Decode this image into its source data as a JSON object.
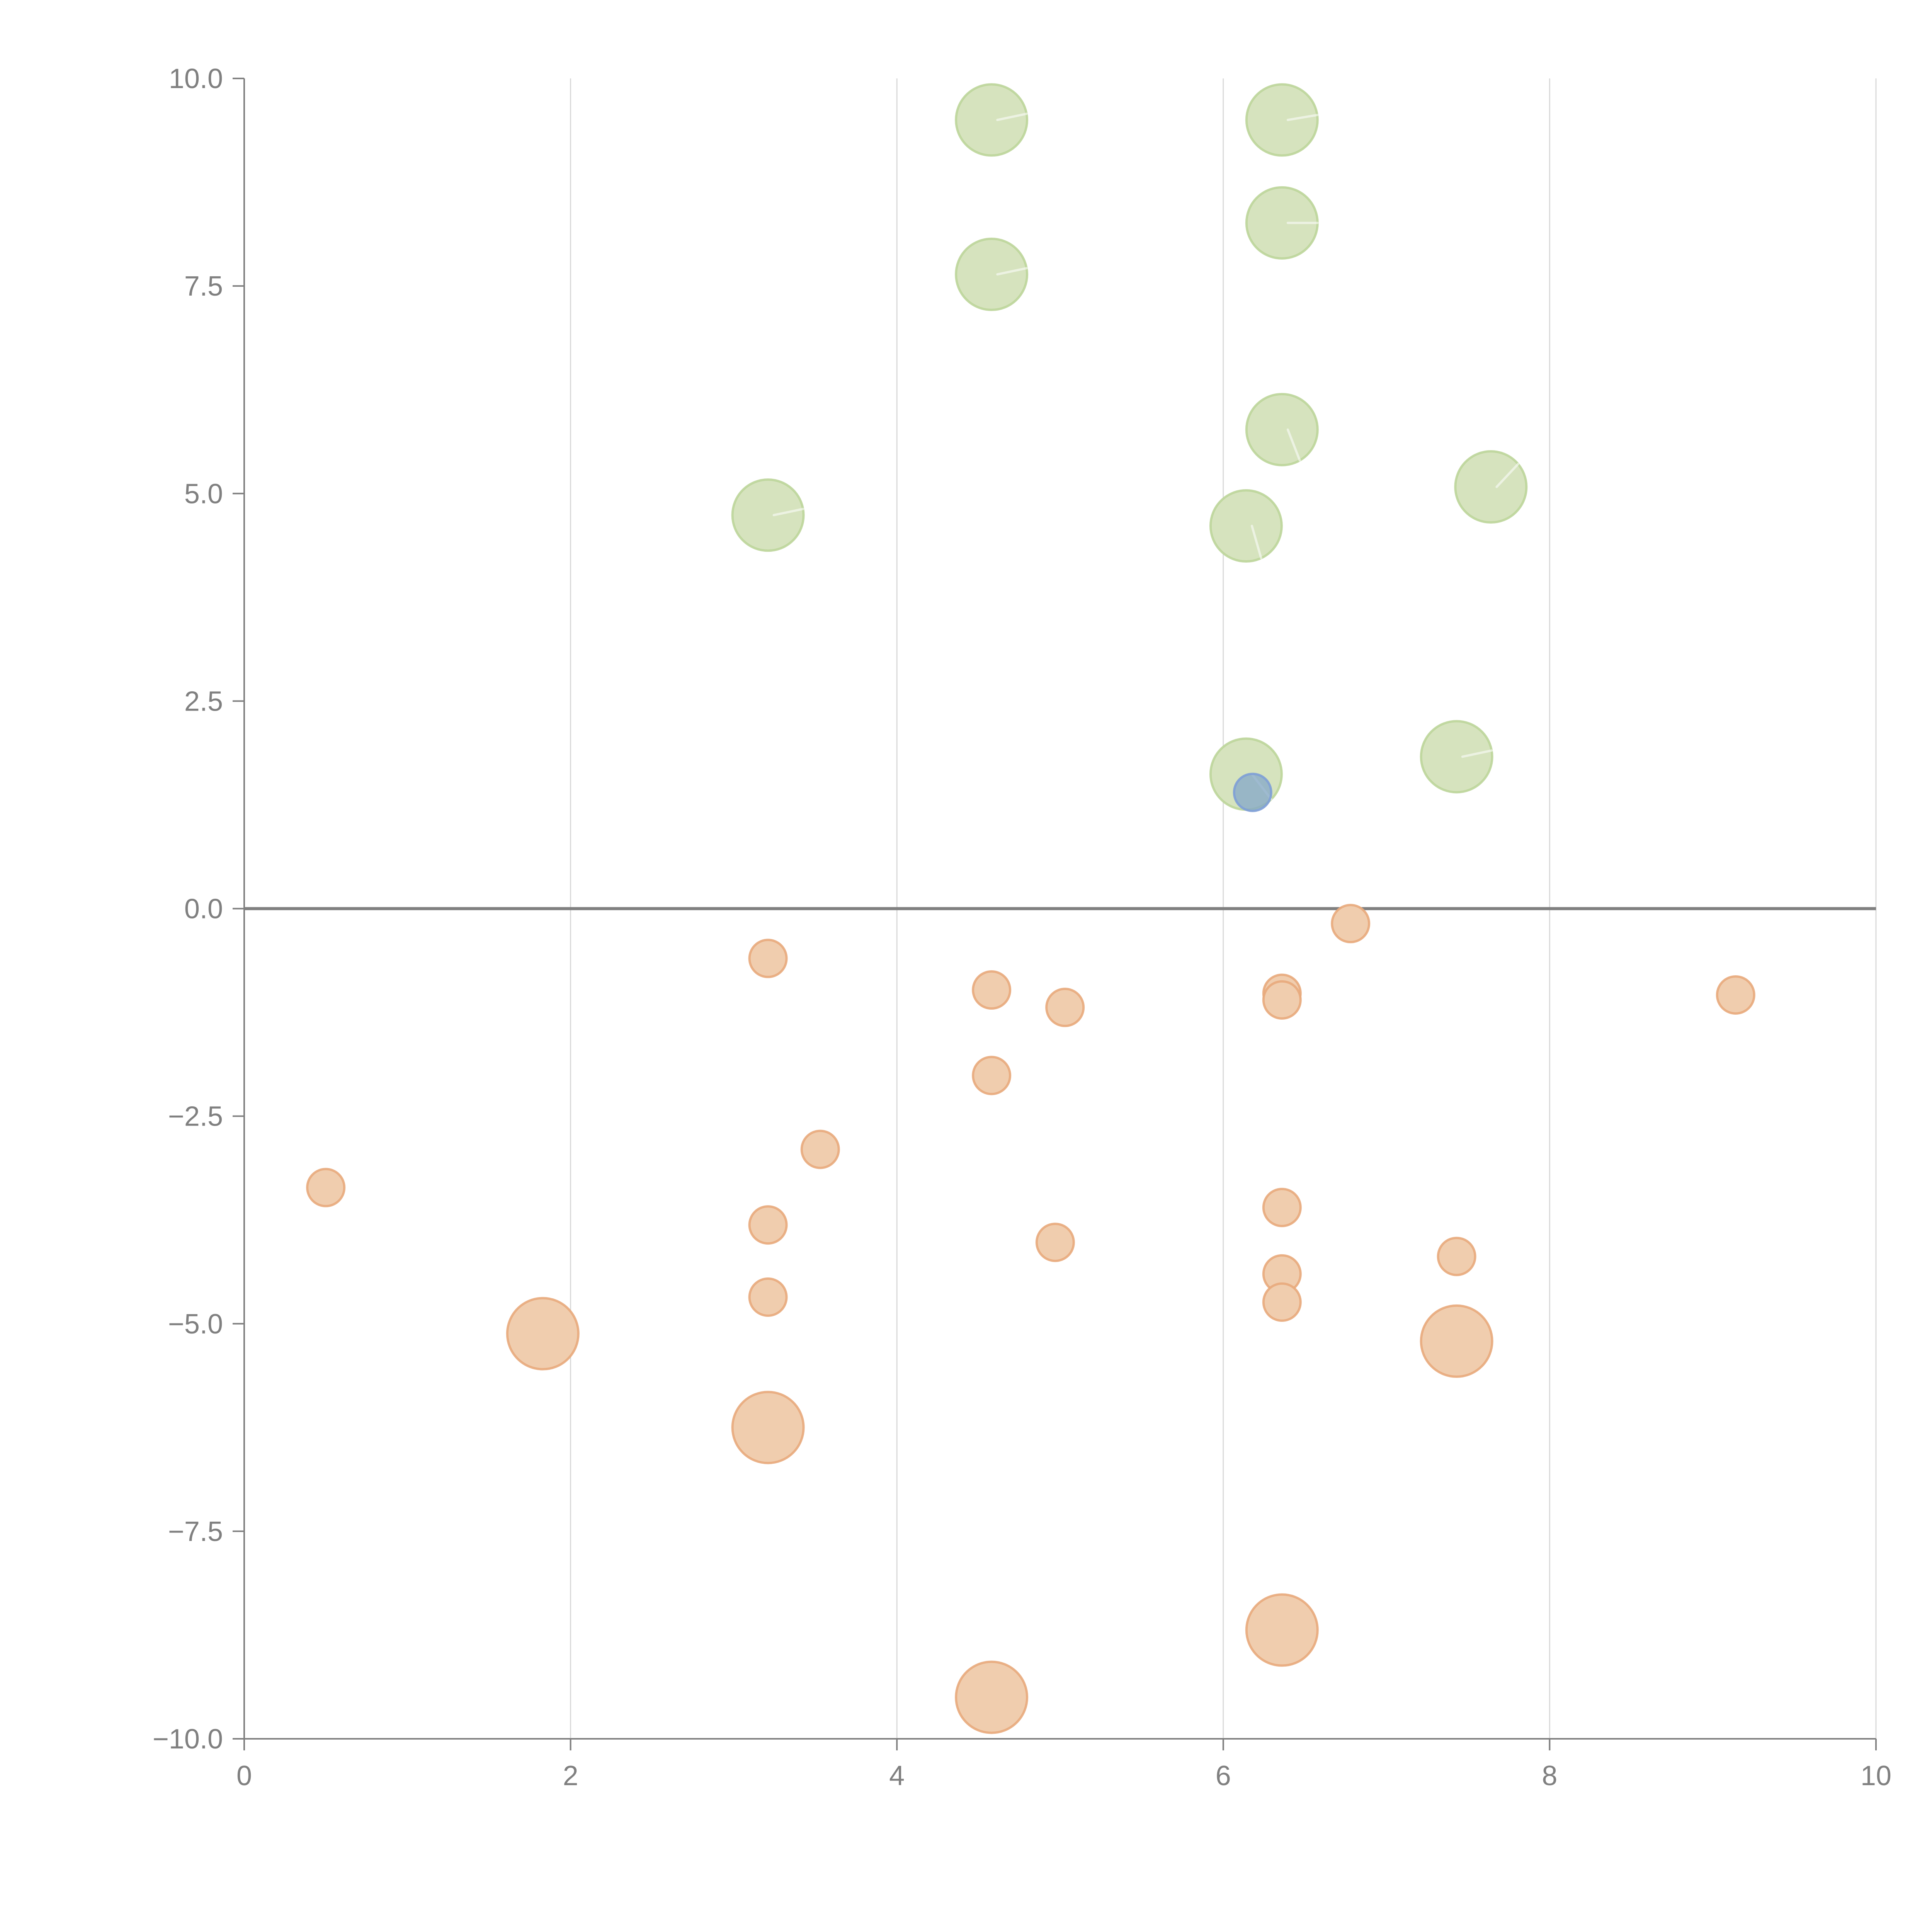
{
  "chart_data": {
    "type": "scatter",
    "subtype": "bubble",
    "title": "",
    "xlabel": "",
    "ylabel": "",
    "xlim": [
      0,
      10
    ],
    "ylim": [
      -10,
      10
    ],
    "x_ticks": [
      "0",
      "2",
      "4",
      "6",
      "8",
      "10"
    ],
    "x_tick_values": [
      0,
      2,
      4,
      6,
      8,
      10
    ],
    "y_ticks": [
      "10.0",
      "7.5",
      "5.0",
      "2.5",
      "0.0",
      "−2.5",
      "−5.0",
      "−7.5",
      "−10.0"
    ],
    "y_tick_values": [
      10,
      7.5,
      5,
      2.5,
      0,
      -2.5,
      -5,
      -7.5,
      -10
    ],
    "grid": "vertical",
    "reference_line_y": 0,
    "legend": "none",
    "colors": {
      "green_fill": "#d6e3be",
      "green_stroke": "#bcd59a",
      "orange_fill": "#f0cdae",
      "orange_stroke": "#e8aa7c",
      "blue_fill": "#7ea3c9",
      "blue_stroke": "#7e9fd6",
      "axis": "#808080",
      "grid": "#d9d9d9"
    },
    "series": [
      {
        "name": "green",
        "color_key": "green",
        "points": [
          {
            "x": 4.58,
            "y": 9.5,
            "size": 2
          },
          {
            "x": 6.36,
            "y": 9.5,
            "size": 2
          },
          {
            "x": 6.36,
            "y": 8.26,
            "size": 2
          },
          {
            "x": 4.58,
            "y": 7.64,
            "size": 2
          },
          {
            "x": 6.36,
            "y": 5.77,
            "size": 2
          },
          {
            "x": 7.64,
            "y": 5.08,
            "size": 2
          },
          {
            "x": 3.21,
            "y": 4.74,
            "size": 2
          },
          {
            "x": 6.14,
            "y": 4.61,
            "size": 2
          },
          {
            "x": 6.14,
            "y": 1.62,
            "size": 2
          },
          {
            "x": 7.43,
            "y": 1.83,
            "size": 2
          }
        ]
      },
      {
        "name": "blue",
        "color_key": "blue",
        "points": [
          {
            "x": 6.18,
            "y": 1.4,
            "size": 1
          }
        ]
      },
      {
        "name": "orange",
        "color_key": "orange",
        "points": [
          {
            "x": 6.78,
            "y": -0.18,
            "size": 1
          },
          {
            "x": 3.21,
            "y": -0.6,
            "size": 1
          },
          {
            "x": 4.58,
            "y": -0.98,
            "size": 1
          },
          {
            "x": 5.03,
            "y": -1.19,
            "size": 1
          },
          {
            "x": 6.36,
            "y": -1.02,
            "size": 1
          },
          {
            "x": 6.36,
            "y": -1.1,
            "size": 1
          },
          {
            "x": 9.14,
            "y": -1.04,
            "size": 1
          },
          {
            "x": 4.58,
            "y": -2.01,
            "size": 1
          },
          {
            "x": 3.53,
            "y": -2.9,
            "size": 1
          },
          {
            "x": 0.5,
            "y": -3.36,
            "size": 1
          },
          {
            "x": 3.21,
            "y": -3.81,
            "size": 1
          },
          {
            "x": 6.36,
            "y": -3.6,
            "size": 1
          },
          {
            "x": 4.97,
            "y": -4.02,
            "size": 1
          },
          {
            "x": 7.43,
            "y": -4.19,
            "size": 1
          },
          {
            "x": 6.36,
            "y": -4.4,
            "size": 1
          },
          {
            "x": 3.21,
            "y": -4.68,
            "size": 1
          },
          {
            "x": 6.36,
            "y": -4.74,
            "size": 1
          },
          {
            "x": 1.83,
            "y": -5.12,
            "size": 2
          },
          {
            "x": 7.43,
            "y": -5.21,
            "size": 2
          },
          {
            "x": 3.21,
            "y": -6.25,
            "size": 2
          },
          {
            "x": 6.36,
            "y": -8.69,
            "size": 2
          },
          {
            "x": 4.58,
            "y": -9.5,
            "size": 2
          }
        ]
      }
    ]
  }
}
